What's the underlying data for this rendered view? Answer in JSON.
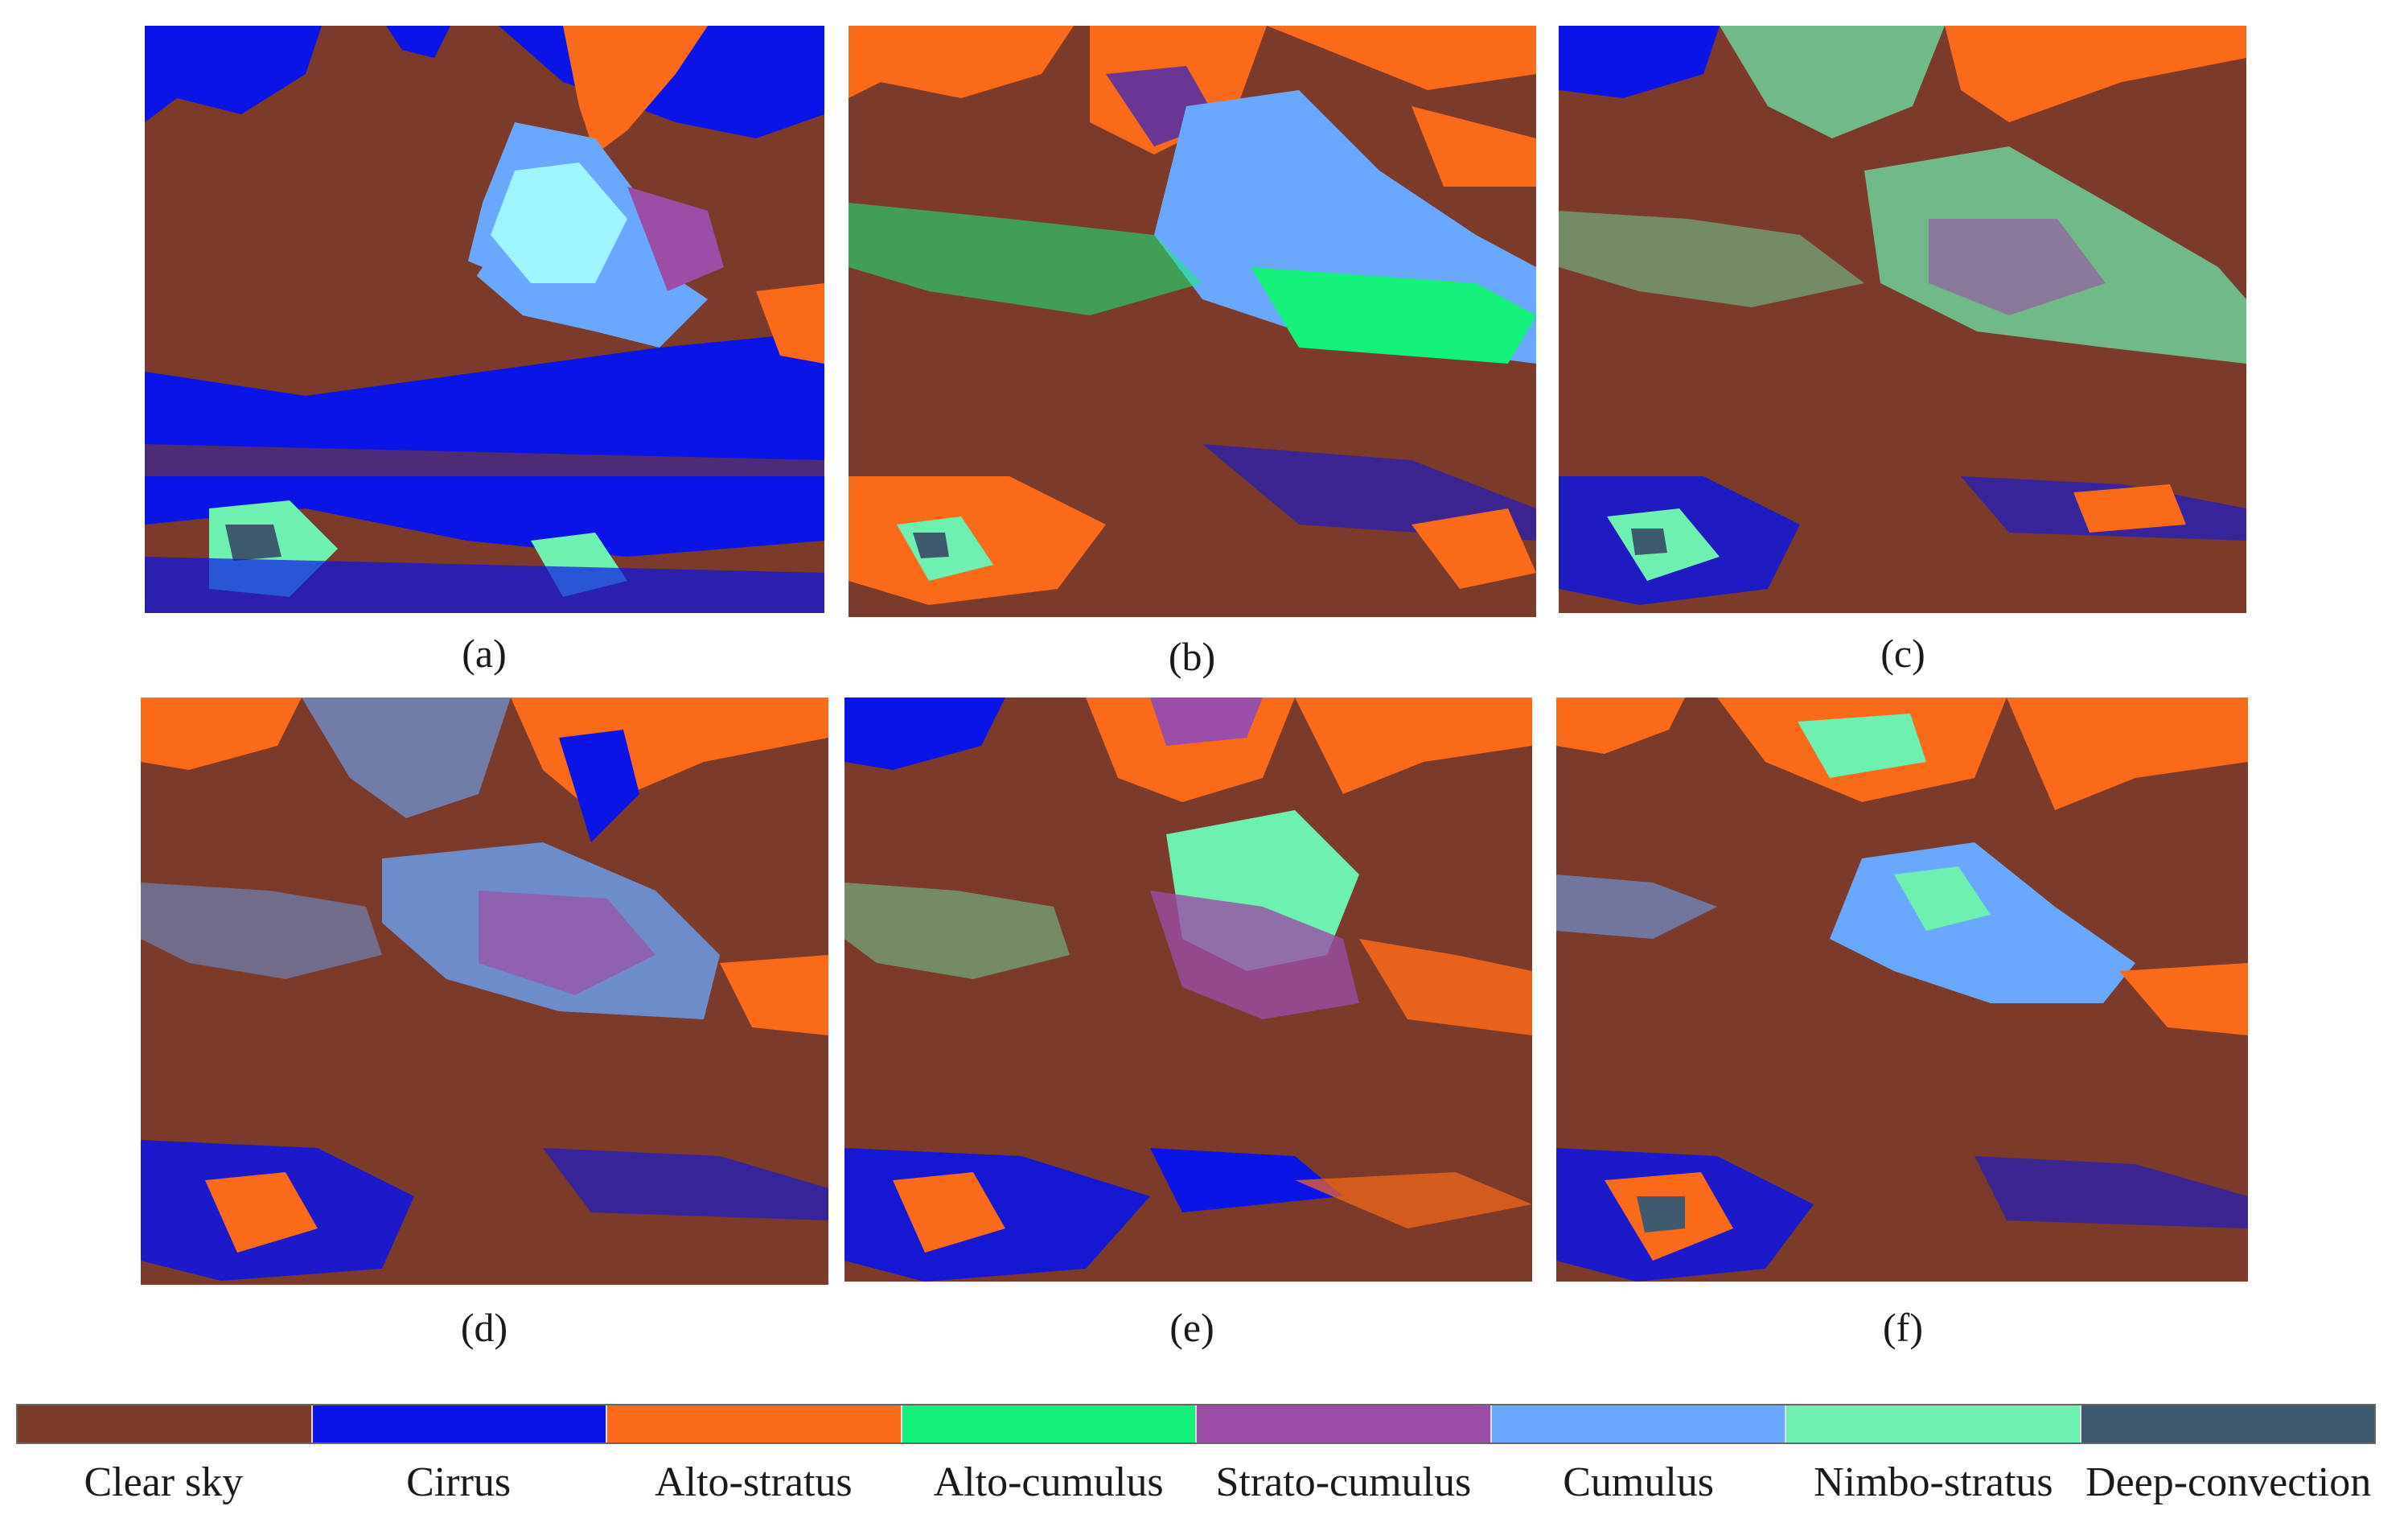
{
  "panels": [
    {
      "label": "(a)"
    },
    {
      "label": "(b)"
    },
    {
      "label": "(c)"
    },
    {
      "label": "(d)"
    },
    {
      "label": "(e)"
    },
    {
      "label": "(f)"
    }
  ],
  "legend": {
    "items": [
      {
        "label": "Clear  sky",
        "color": "#7b3a2a"
      },
      {
        "label": "Cirrus",
        "color": "#0a14e6"
      },
      {
        "label": "Alto-stratus",
        "color": "#fb6a1a"
      },
      {
        "label": "Alto-cumulus",
        "color": "#14f07a"
      },
      {
        "label": "Strato-cumulus",
        "color": "#9b4ea6"
      },
      {
        "label": "Cumulus",
        "color": "#6aa8ff"
      },
      {
        "label": "Nimbo-stratus",
        "color": "#6ef0b0"
      },
      {
        "label": "Deep-convection",
        "color": "#3e5a6e"
      }
    ]
  }
}
